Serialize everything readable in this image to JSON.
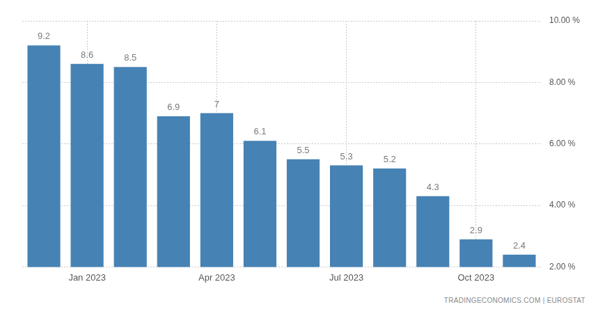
{
  "chart_data": {
    "type": "bar",
    "source": "TRADINGECONOMICS.COM | EUROSTAT",
    "categories": [
      null,
      "Jan 2023",
      null,
      null,
      "Apr 2023",
      null,
      null,
      "Jul 2023",
      null,
      null,
      "Oct 2023",
      null
    ],
    "values": [
      9.2,
      8.6,
      8.5,
      6.9,
      7,
      6.1,
      5.5,
      5.3,
      5.2,
      4.3,
      2.9,
      2.4
    ],
    "color": "#4682b4",
    "ylim": [
      2,
      10
    ],
    "yticks": [
      {
        "value": 2,
        "label": "2.00 %"
      },
      {
        "value": 4,
        "label": "4.00 %"
      },
      {
        "value": 6,
        "label": "6.00 %"
      },
      {
        "value": 8,
        "label": "8.00 %"
      },
      {
        "value": 10,
        "label": "10.00 %"
      }
    ],
    "grid": true,
    "data_labels": true
  }
}
